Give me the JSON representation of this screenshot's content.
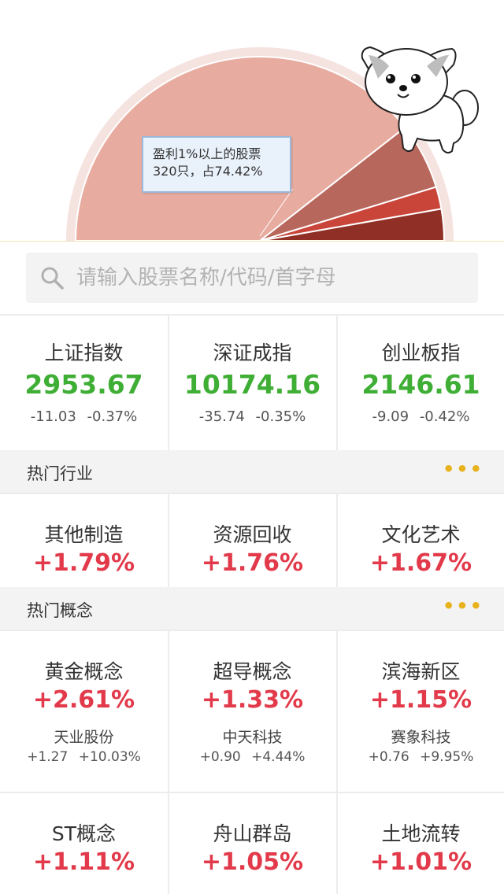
{
  "pie": {
    "tooltip_line1": "盈利1%以上的股票",
    "tooltip_line2": "320只，占74.42%",
    "colors": [
      "#e8aba0",
      "#b8675c",
      "#c9453a",
      "#8f2f25"
    ]
  },
  "search": {
    "placeholder": "请输入股票名称/代码/首字母",
    "icon": "search-icon"
  },
  "indices": [
    {
      "name": "上证指数",
      "value": "2953.67",
      "change": "-11.03",
      "pct": "-0.37%"
    },
    {
      "name": "深证成指",
      "value": "10174.16",
      "change": "-35.74",
      "pct": "-0.35%"
    },
    {
      "name": "创业板指",
      "value": "2146.61",
      "change": "-9.09",
      "pct": "-0.42%"
    }
  ],
  "hot_industry": {
    "title": "热门行业",
    "more": "•••",
    "items": [
      {
        "name": "其他制造",
        "pct": "+1.79%"
      },
      {
        "name": "资源回收",
        "pct": "+1.76%"
      },
      {
        "name": "文化艺术",
        "pct": "+1.67%"
      }
    ]
  },
  "hot_concept": {
    "title": "热门概念",
    "more": "•••",
    "items": [
      {
        "name": "黄金概念",
        "pct": "+2.61%",
        "stock": "天业股份",
        "change": "+1.27",
        "stock_pct": "+10.03%"
      },
      {
        "name": "超导概念",
        "pct": "+1.33%",
        "stock": "中天科技",
        "change": "+0.90",
        "stock_pct": "+4.44%"
      },
      {
        "name": "滨海新区",
        "pct": "+1.15%",
        "stock": "赛象科技",
        "change": "+0.76",
        "stock_pct": "+9.95%"
      },
      {
        "name": "ST概念",
        "pct": "+1.11%"
      },
      {
        "name": "舟山群岛",
        "pct": "+1.05%"
      },
      {
        "name": "土地流转",
        "pct": "+1.01%"
      }
    ]
  }
}
